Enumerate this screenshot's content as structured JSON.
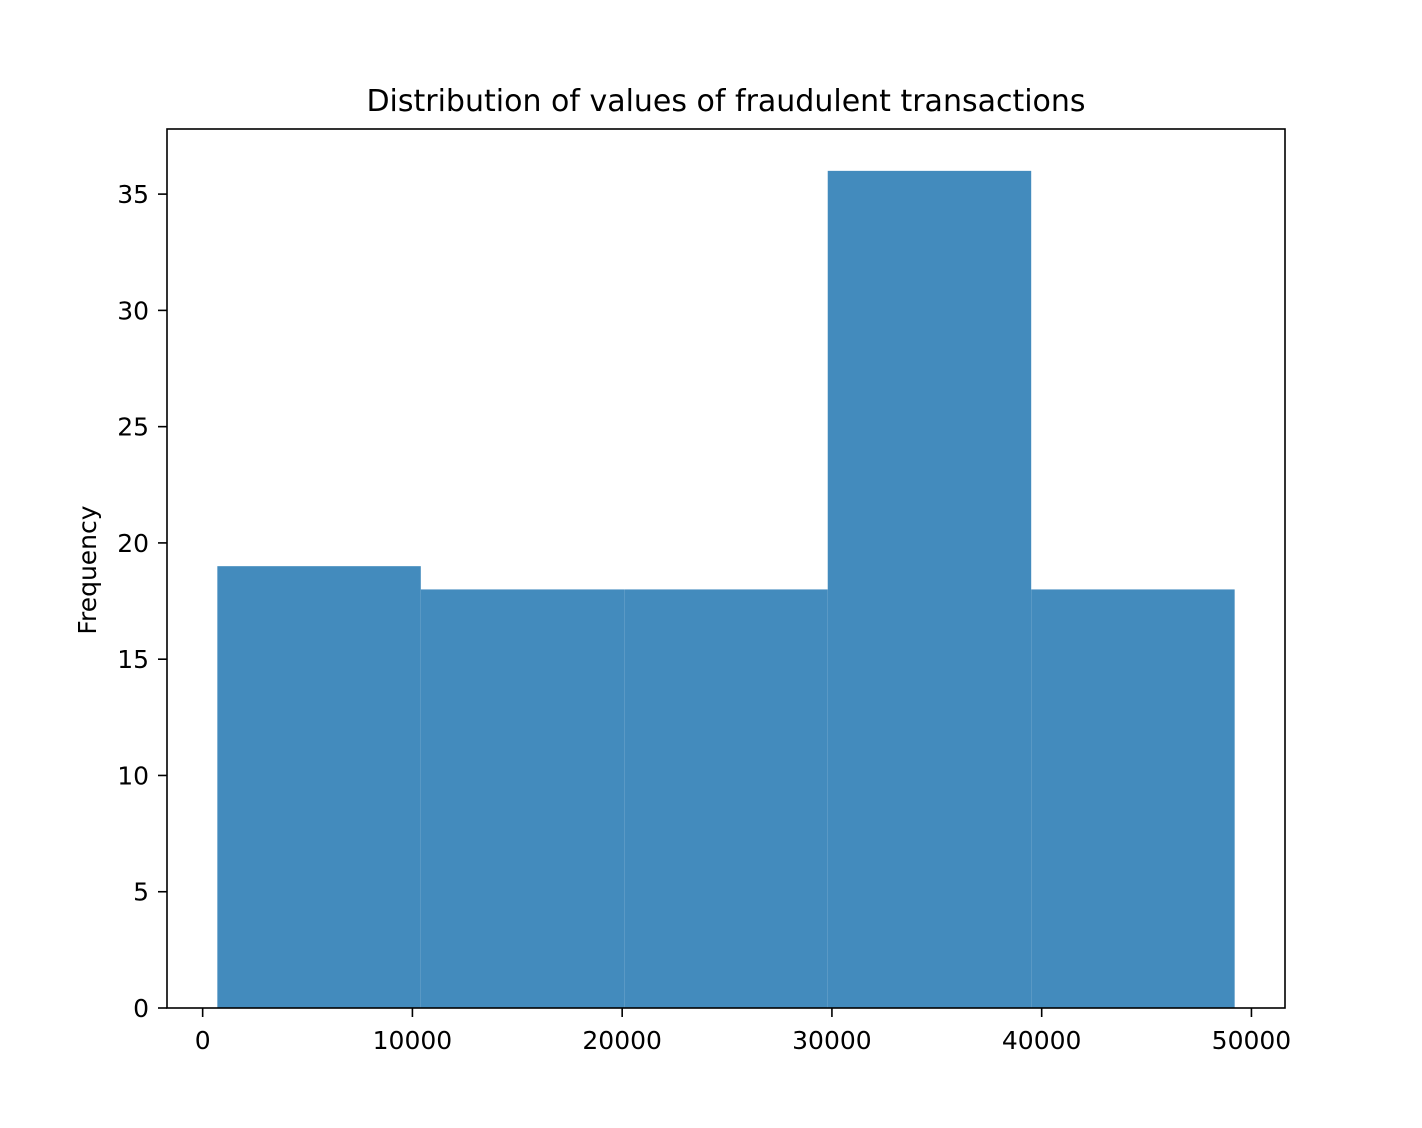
{
  "chart_data": {
    "type": "bar",
    "subtype": "histogram",
    "title": "Distribution of values of fraudulent transactions",
    "xlabel": "",
    "ylabel": "Frequency",
    "bins": [
      {
        "x0": 700,
        "x1": 10400,
        "count": 19
      },
      {
        "x0": 10400,
        "x1": 20100,
        "count": 18
      },
      {
        "x0": 20100,
        "x1": 29800,
        "count": 18
      },
      {
        "x0": 29800,
        "x1": 39500,
        "count": 36
      },
      {
        "x0": 39500,
        "x1": 49200,
        "count": 18
      }
    ],
    "xlim": [
      -1700,
      51600
    ],
    "ylim": [
      0,
      37.8
    ],
    "xticks": [
      0,
      10000,
      20000,
      30000,
      40000,
      50000
    ],
    "yticks": [
      0,
      5,
      10,
      15,
      20,
      25,
      30,
      35
    ],
    "bar_color": "#438bbd",
    "grid": false,
    "legend": "none"
  }
}
